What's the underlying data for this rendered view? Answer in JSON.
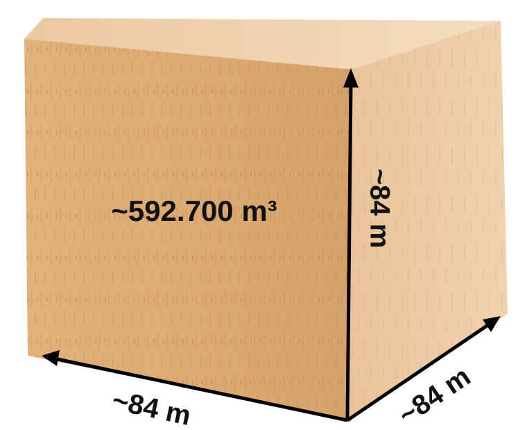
{
  "labels": {
    "volume": "~592.700 m³",
    "height": "~84 m",
    "width": "~84 m",
    "depth": "~84 m"
  }
}
